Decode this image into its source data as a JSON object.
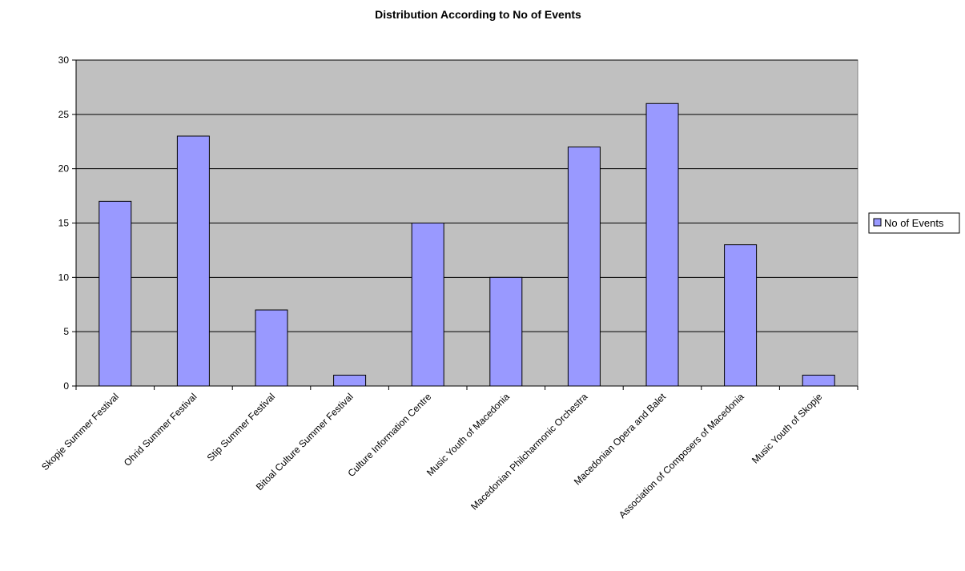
{
  "chart_data": {
    "type": "bar",
    "title": "Distribution According to No of Events",
    "xlabel": "",
    "ylabel": "",
    "categories": [
      "Skopje Summer Festival",
      "Ohrid Summer Festival",
      "Stip Summer Festival",
      "Bitoal Culture Summer Festival",
      "Culture Information Centre",
      "Music Youth of Macedonia",
      "Macedonian Philcharmonic Orchestra",
      "Macedonian Opera and Balet",
      "Association of Composers of Macedonia",
      "Music Youth of Skopje"
    ],
    "series": [
      {
        "name": "No of Events",
        "values": [
          17,
          23,
          7,
          1,
          15,
          10,
          22,
          26,
          13,
          1
        ],
        "color": "#9999ff"
      }
    ],
    "ylim": [
      0,
      30
    ],
    "yticks": [
      "0",
      "5",
      "10",
      "15",
      "20",
      "25",
      "30"
    ],
    "grid": true,
    "legend_position": "right",
    "plot_background": "#c0c0c0"
  }
}
